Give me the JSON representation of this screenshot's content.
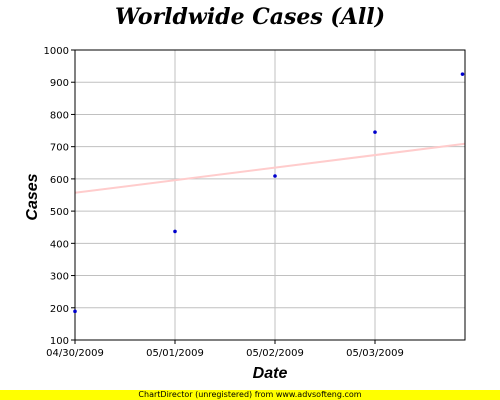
{
  "chart_data": {
    "type": "scatter",
    "title": "Worldwide Cases (All)",
    "xlabel": "Date",
    "ylabel": "Cases",
    "x_ticks": [
      "04/30/2009",
      "05/01/2009",
      "05/02/2009",
      "05/03/2009"
    ],
    "y_ticks": [
      "100",
      "200",
      "300",
      "400",
      "500",
      "600",
      "700",
      "800",
      "900",
      "1000"
    ],
    "xlim": [
      "2009-04-30",
      "2009-05-03T21:36"
    ],
    "ylim": [
      100,
      1000
    ],
    "grid": true,
    "legend": "none",
    "series": [
      {
        "color": "#0000cc",
        "points": [
          {
            "x": "2009-04-30",
            "y": 189
          },
          {
            "x": "2009-05-01",
            "y": 437
          },
          {
            "x": "2009-05-02",
            "y": 609
          },
          {
            "x": "2009-05-03",
            "y": 745
          },
          {
            "x": "2009-05-03T21:00",
            "y": 925
          }
        ]
      }
    ],
    "trendline": {
      "color": "#ffcccc",
      "points": [
        {
          "x": "2009-04-30",
          "y": 557
        },
        {
          "x": "2009-05-03T21:36",
          "y": 709
        }
      ]
    }
  },
  "footer": {
    "text": "ChartDirector (unregistered) from www.advsofteng.com",
    "background": "#ffff00"
  }
}
